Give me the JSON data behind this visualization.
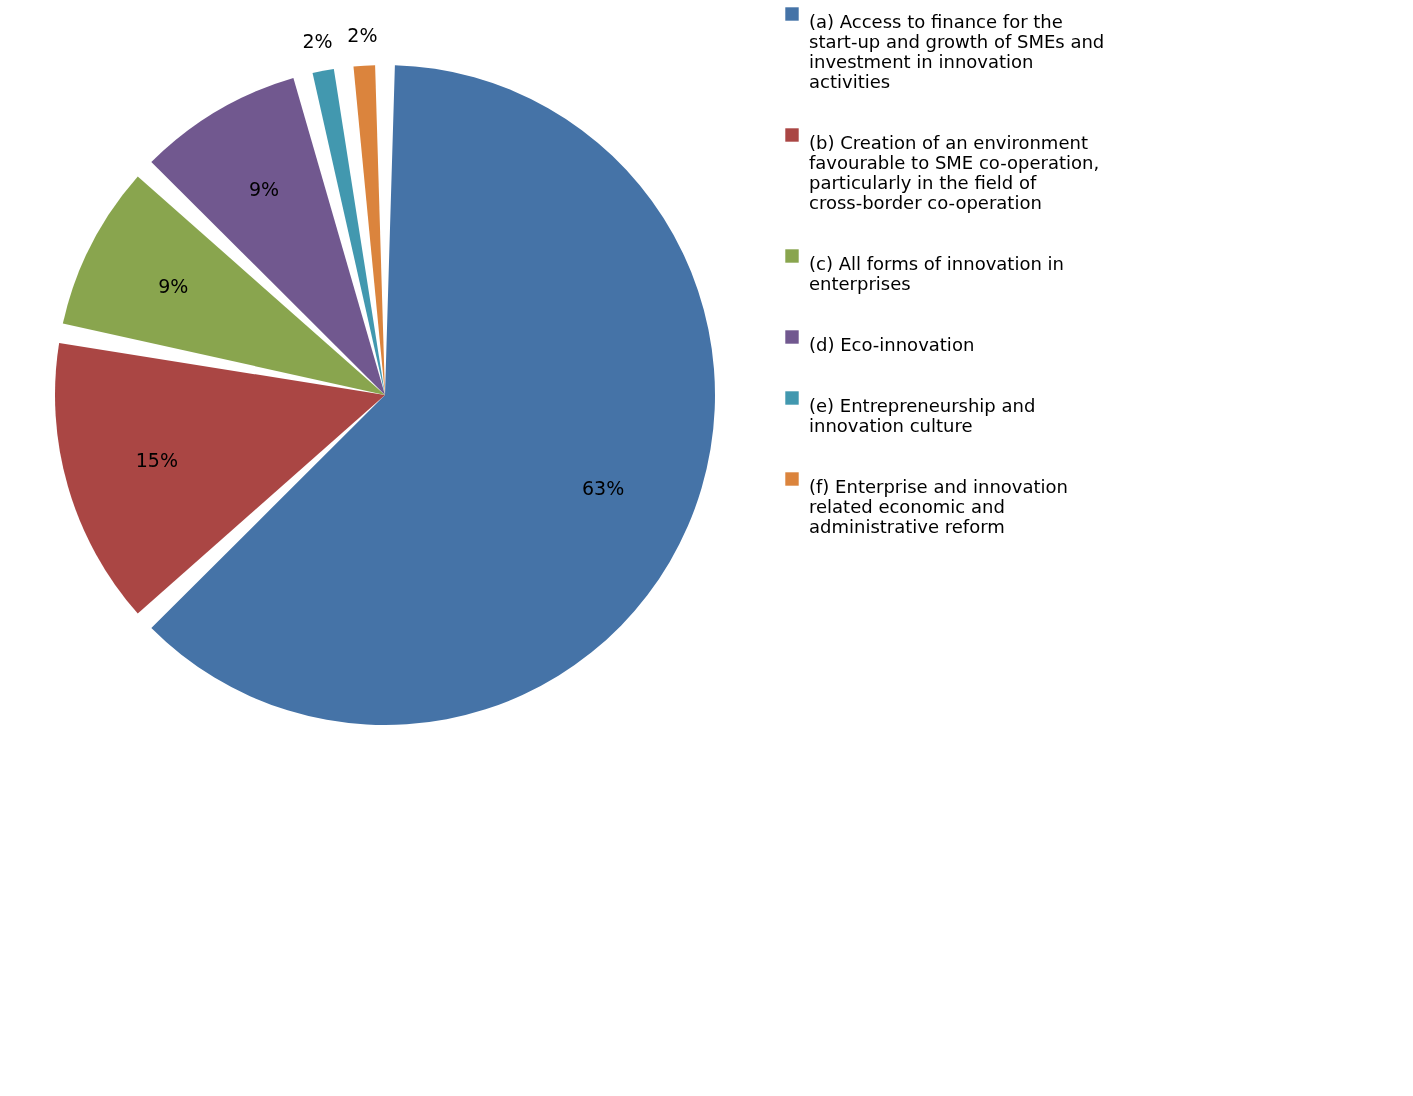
{
  "chart_data": {
    "type": "pie",
    "categories": [
      "(a) Access to finance for the start-up and growth of SMEs and investment in innovation activities",
      "(b) Creation of an environment favourable to SME co-operation, particularly in the field of cross-border co-operation",
      "(c) All forms of innovation in enterprises",
      "(d) Eco-innovation",
      "(e) Entrepreneurship and innovation culture",
      "(f) Enterprise and innovation related economic and administrative reform"
    ],
    "values": [
      63,
      15,
      9,
      9,
      2,
      2
    ],
    "colors": [
      "#4573a7",
      "#aa4644",
      "#89a54e",
      "#71588f",
      "#4298af",
      "#db843d"
    ],
    "value_labels": [
      "63%",
      "15%",
      "9%",
      "9%",
      "2%",
      "2%"
    ],
    "legend": "right"
  }
}
